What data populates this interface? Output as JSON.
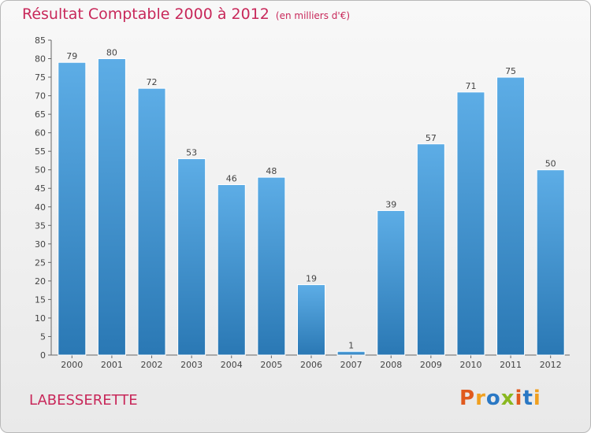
{
  "header": {
    "title": "Résultat Comptable 2000 à 2012",
    "subtitle": "(en milliers d'€)"
  },
  "footer": {
    "commune": "LABESSERETTE",
    "brand": "Proxiti"
  },
  "colors": {
    "accent": "#c8285a",
    "bar_top": "#5dade6",
    "bar_bottom": "#2a78b4",
    "brand_letters": [
      "#e05a1e",
      "#f0a020",
      "#2a78c4",
      "#8ab820",
      "#e05a1e",
      "#2a78c4",
      "#f0a020"
    ]
  },
  "chart_data": {
    "type": "bar",
    "categories": [
      "2000",
      "2001",
      "2002",
      "2003",
      "2004",
      "2005",
      "2006",
      "2007",
      "2008",
      "2009",
      "2010",
      "2011",
      "2012"
    ],
    "values": [
      79,
      80,
      72,
      53,
      46,
      48,
      19,
      1,
      39,
      57,
      71,
      75,
      50
    ],
    "title": "Résultat Comptable 2000 à 2012",
    "subtitle": "(en milliers d'€)",
    "ylim": [
      0,
      85
    ],
    "yticks": [
      0,
      5,
      10,
      15,
      20,
      25,
      30,
      35,
      40,
      45,
      50,
      55,
      60,
      65,
      70,
      75,
      80,
      85
    ],
    "grid": false,
    "data_labels": true
  }
}
